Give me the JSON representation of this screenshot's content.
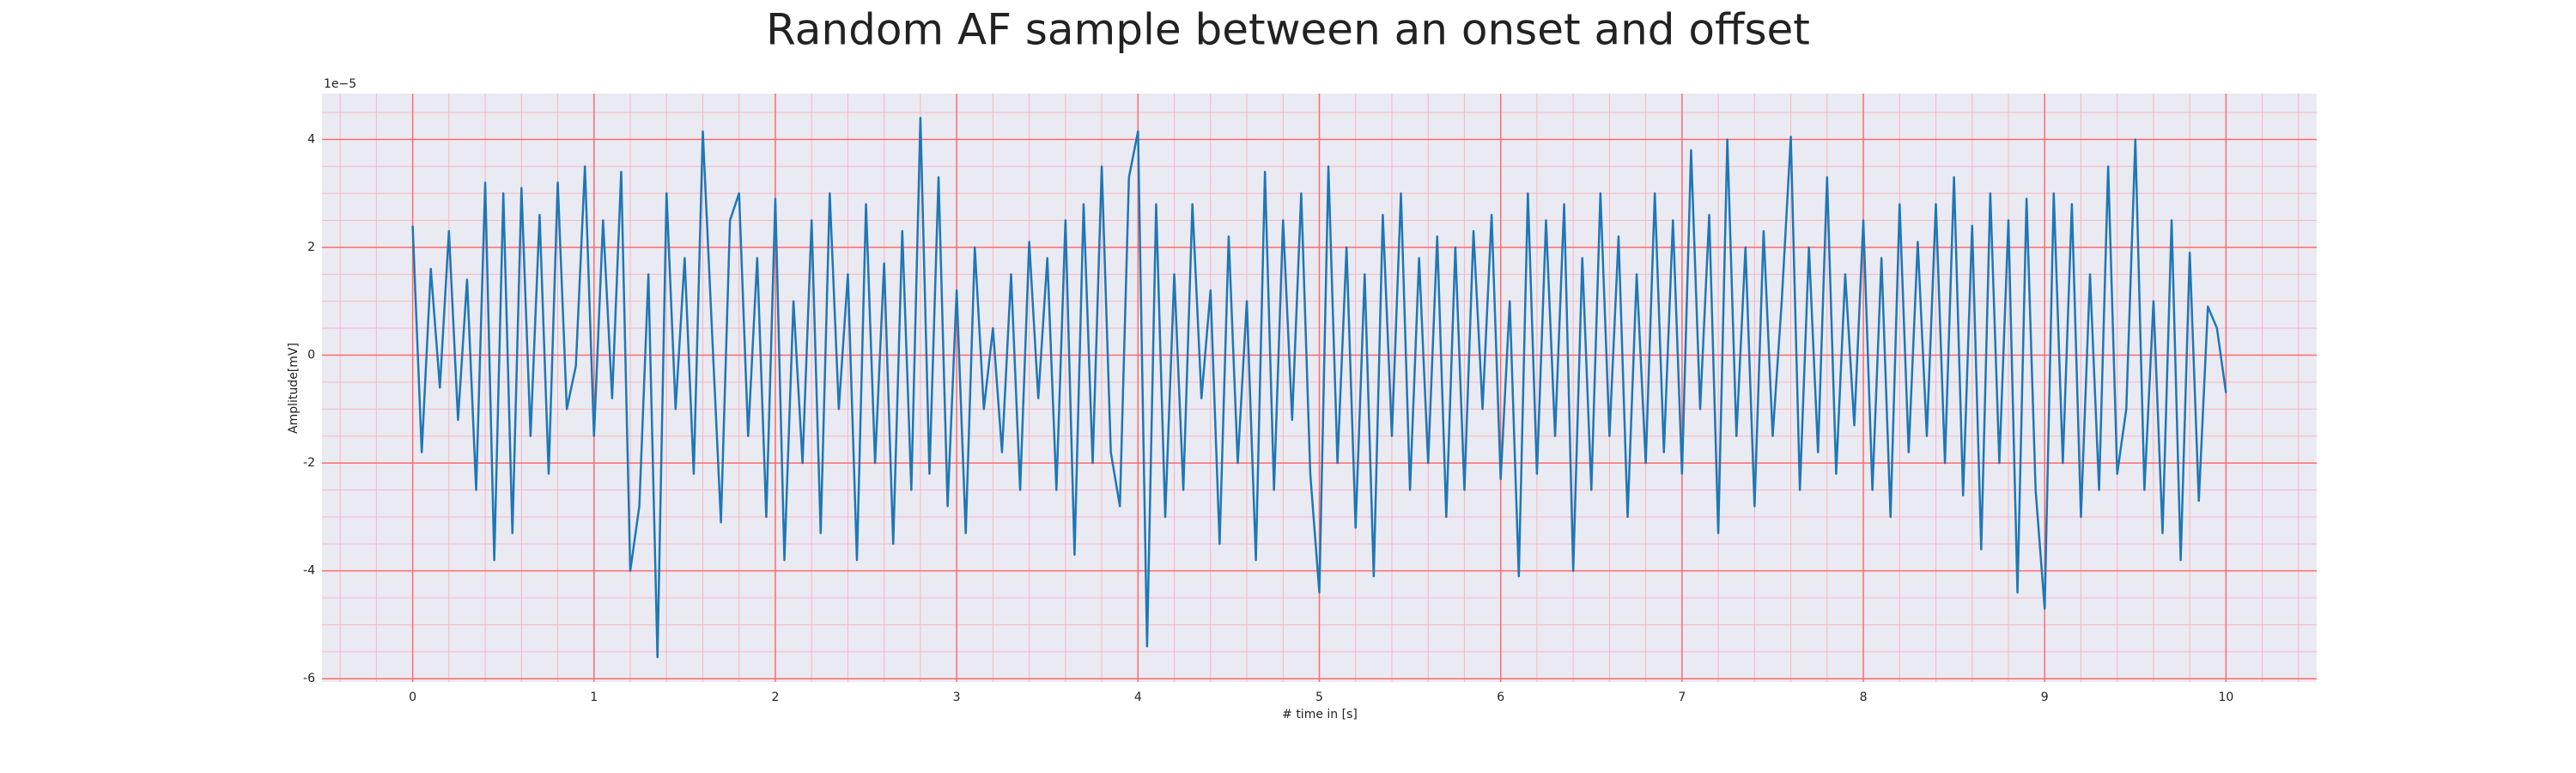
{
  "chart_data": {
    "type": "line",
    "title": "Random AF sample between an onset and offset",
    "xlabel": "# time in [s]",
    "ylabel": "Amplitude[mV]",
    "y_offset_label": "1e−5",
    "x": [
      0,
      0.05,
      0.1,
      0.15,
      0.2,
      0.25,
      0.3,
      0.35,
      0.4,
      0.45,
      0.5,
      0.55,
      0.6,
      0.65,
      0.7,
      0.75,
      0.8,
      0.85,
      0.9,
      0.95,
      1,
      1.05,
      1.1,
      1.15,
      1.2,
      1.25,
      1.3,
      1.35,
      1.4,
      1.45,
      1.5,
      1.55,
      1.6,
      1.65,
      1.7,
      1.75,
      1.8,
      1.85,
      1.9,
      1.95,
      2,
      2.05,
      2.1,
      2.15,
      2.2,
      2.25,
      2.3,
      2.35,
      2.4,
      2.45,
      2.5,
      2.55,
      2.6,
      2.65,
      2.7,
      2.75,
      2.8,
      2.85,
      2.9,
      2.95,
      3,
      3.05,
      3.1,
      3.15,
      3.2,
      3.25,
      3.3,
      3.35,
      3.4,
      3.45,
      3.5,
      3.55,
      3.6,
      3.65,
      3.7,
      3.75,
      3.8,
      3.85,
      3.9,
      3.95,
      4,
      4.05,
      4.1,
      4.15,
      4.2,
      4.25,
      4.3,
      4.35,
      4.4,
      4.45,
      4.5,
      4.55,
      4.6,
      4.65,
      4.7,
      4.75,
      4.8,
      4.85,
      4.9,
      4.95,
      5,
      5.05,
      5.1,
      5.15,
      5.2,
      5.25,
      5.3,
      5.35,
      5.4,
      5.45,
      5.5,
      5.55,
      5.6,
      5.65,
      5.7,
      5.75,
      5.8,
      5.85,
      5.9,
      5.95,
      6,
      6.05,
      6.1,
      6.15,
      6.2,
      6.25,
      6.3,
      6.35,
      6.4,
      6.45,
      6.5,
      6.55,
      6.6,
      6.65,
      6.7,
      6.75,
      6.8,
      6.85,
      6.9,
      6.95,
      7,
      7.05,
      7.1,
      7.15,
      7.2,
      7.25,
      7.3,
      7.35,
      7.4,
      7.45,
      7.5,
      7.55,
      7.6,
      7.65,
      7.7,
      7.75,
      7.8,
      7.85,
      7.9,
      7.95,
      8,
      8.05,
      8.1,
      8.15,
      8.2,
      8.25,
      8.3,
      8.35,
      8.4,
      8.45,
      8.5,
      8.55,
      8.6,
      8.65,
      8.7,
      8.75,
      8.8,
      8.85,
      8.9,
      8.95,
      9,
      9.05,
      9.1,
      9.15,
      9.2,
      9.25,
      9.3,
      9.35,
      9.4,
      9.45,
      9.5,
      9.55,
      9.6,
      9.65,
      9.7,
      9.75,
      9.8,
      9.85,
      9.9,
      9.95,
      10
    ],
    "values": [
      2.4,
      -1.8,
      1.6,
      -0.6,
      2.3,
      -1.2,
      1.4,
      -2.5,
      3.2,
      -3.8,
      3.0,
      -3.3,
      3.1,
      -1.5,
      2.6,
      -2.2,
      3.2,
      -1.0,
      -0.2,
      3.5,
      -1.5,
      2.5,
      -0.8,
      3.4,
      -4.0,
      -2.8,
      1.5,
      -5.6,
      3.0,
      -1.0,
      1.8,
      -2.2,
      4.15,
      0.5,
      -3.1,
      2.5,
      3.0,
      -1.5,
      1.8,
      -3.0,
      2.9,
      -3.8,
      1.0,
      -2.0,
      2.5,
      -3.3,
      3.0,
      -1.0,
      1.5,
      -3.8,
      2.8,
      -2.0,
      1.7,
      -3.5,
      2.3,
      -2.5,
      4.4,
      -2.2,
      3.3,
      -2.8,
      1.2,
      -3.3,
      2.0,
      -1.0,
      0.5,
      -1.8,
      1.5,
      -2.5,
      2.1,
      -0.8,
      1.8,
      -2.5,
      2.5,
      -3.7,
      2.8,
      -2.0,
      3.5,
      -1.8,
      -2.8,
      3.3,
      4.15,
      -5.4,
      2.8,
      -3.0,
      1.5,
      -2.5,
      2.8,
      -0.8,
      1.2,
      -3.5,
      2.2,
      -2.0,
      1.0,
      -3.8,
      3.4,
      -2.5,
      2.5,
      -1.2,
      3.0,
      -2.2,
      -4.4,
      3.5,
      -2.0,
      2.0,
      -3.2,
      1.5,
      -4.1,
      2.6,
      -1.5,
      3.0,
      -2.5,
      1.8,
      -2.0,
      2.2,
      -3.0,
      2.0,
      -2.5,
      2.3,
      -1.0,
      2.6,
      -2.3,
      1.0,
      -4.1,
      3.0,
      -2.2,
      2.5,
      -1.5,
      2.8,
      -4.0,
      1.8,
      -2.5,
      3.0,
      -1.5,
      2.2,
      -3.0,
      1.5,
      -2.0,
      3.0,
      -1.8,
      2.5,
      -2.2,
      3.8,
      -1.0,
      2.6,
      -3.3,
      4.0,
      -1.5,
      2.0,
      -2.8,
      2.3,
      -1.5,
      1.0,
      4.05,
      -2.5,
      2.0,
      -1.8,
      3.3,
      -2.2,
      1.5,
      -1.3,
      2.5,
      -2.5,
      1.8,
      -3.0,
      2.8,
      -1.8,
      2.1,
      -1.5,
      2.8,
      -2.0,
      3.3,
      -2.6,
      2.4,
      -3.6,
      3.0,
      -2.0,
      2.5,
      -4.4,
      2.9,
      -2.5,
      -4.7,
      3.0,
      -2.0,
      2.8,
      -3.0,
      1.5,
      -2.5,
      3.5,
      -2.2,
      -1.0,
      4.0,
      -2.5,
      1.0,
      -3.3,
      2.5,
      -3.8,
      1.9,
      -2.7,
      0.9,
      0.5,
      -0.7
    ],
    "color": "#1f77b4",
    "xlim": [
      -0.5,
      10.5
    ],
    "ylim": [
      -6.06,
      4.85
    ],
    "xticks": [
      0,
      1,
      2,
      3,
      4,
      5,
      6,
      7,
      8,
      9,
      10
    ],
    "yticks": [
      -6,
      -4,
      -2,
      0,
      2,
      4
    ],
    "xminorticks": [
      -0.4,
      -0.2,
      0.2,
      0.4,
      0.6,
      0.8,
      1.2,
      1.4,
      1.6,
      1.8,
      2.2,
      2.4,
      2.6,
      2.8,
      3.2,
      3.4,
      3.6,
      3.8,
      4.2,
      4.4,
      4.6,
      4.8,
      5.2,
      5.4,
      5.6,
      5.8,
      6.2,
      6.4,
      6.6,
      6.8,
      7.2,
      7.4,
      7.6,
      7.8,
      8.2,
      8.4,
      8.6,
      8.8,
      9.2,
      9.4,
      9.6,
      9.8,
      10.2,
      10.4
    ],
    "yminorticks": [
      -5.5,
      -5,
      -4.5,
      -3.5,
      -3,
      -2.5,
      -1.5,
      -1,
      -0.5,
      0.5,
      1,
      1.5,
      2.5,
      3,
      3.5,
      4.5
    ],
    "grid": true,
    "grid_color": "#ff6b6b",
    "minor_grid_color": "#f4b6c2"
  }
}
